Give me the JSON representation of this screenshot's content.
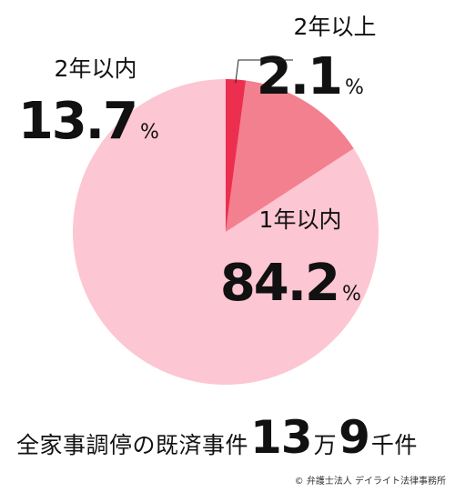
{
  "chart_data": {
    "type": "pie",
    "slices": [
      {
        "label": "1年以内",
        "value": 84.2,
        "unit": "%",
        "color": "#fcc6d3"
      },
      {
        "label": "2年以内",
        "value": 13.7,
        "unit": "%",
        "color": "#f2808f"
      },
      {
        "label": "2年以上",
        "value": 2.1,
        "unit": "%",
        "color": "#ed2f4f"
      }
    ],
    "start_angle_deg": 0,
    "direction": "counterclockwise"
  },
  "footer": {
    "prefix": "全家事調停の既済事件",
    "num1": "13",
    "unit1": "万",
    "num2": "9",
    "unit2": "千件"
  },
  "credit": "© 弁護士法人 デイライト法律事務所"
}
